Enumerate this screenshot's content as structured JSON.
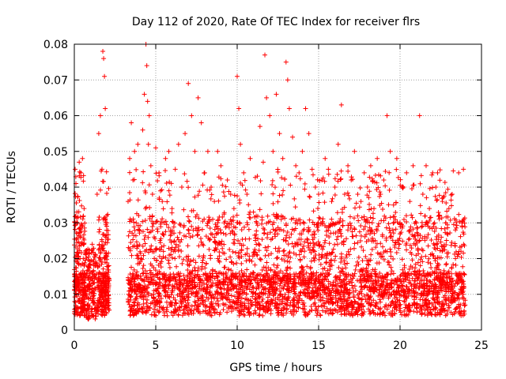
{
  "chart_data": {
    "type": "scatter",
    "title": "Day 112 of 2020, Rate Of TEC Index for receiver flrs",
    "xlabel": "GPS time / hours",
    "ylabel": "ROTI / TECUs",
    "xlim": [
      0,
      25
    ],
    "ylim": [
      0,
      0.08
    ],
    "xticks": [
      0,
      5,
      10,
      15,
      20,
      25
    ],
    "yticks": [
      0,
      0.01,
      0.02,
      0.03,
      0.04,
      0.05,
      0.06,
      0.07,
      0.08
    ],
    "xtick_labels": [
      "0",
      "5",
      "10",
      "15",
      "20",
      "25"
    ],
    "ytick_labels": [
      "0",
      "0.01",
      "0.02",
      "0.03",
      "0.04",
      "0.05",
      "0.06",
      "0.07",
      "0.08"
    ],
    "grid": true,
    "marker": "+",
    "marker_color": "#ff0000",
    "data_gap_hours": [
      2.2,
      3.2
    ],
    "series": [
      {
        "x": [
          0.05,
          0.1,
          0.15,
          0.2,
          0.25,
          0.3,
          0.35,
          0.4,
          0.45,
          0.5,
          0.55,
          0.6,
          0.7,
          0.8,
          0.9,
          1.0,
          1.1,
          1.2,
          1.3,
          1.4,
          1.5,
          1.6,
          1.7,
          1.75,
          1.8,
          1.85,
          1.9,
          2.0,
          2.1,
          3.3,
          3.4,
          3.5,
          3.6,
          3.7,
          3.8,
          3.9,
          4.0,
          4.1,
          4.2,
          4.3,
          4.4,
          4.45,
          4.5,
          4.55,
          4.6,
          4.7,
          4.8,
          4.9,
          5.0,
          5.2,
          5.4,
          5.6,
          5.8,
          6.0,
          6.2,
          6.4,
          6.6,
          6.8,
          7.0,
          7.2,
          7.4,
          7.6,
          7.8,
          8.0,
          8.2,
          8.4,
          8.6,
          8.8,
          9.0,
          9.2,
          9.4,
          9.6,
          9.8,
          10.0,
          10.1,
          10.2,
          10.4,
          10.6,
          10.8,
          11.0,
          11.2,
          11.4,
          11.6,
          11.7,
          11.8,
          12.0,
          12.2,
          12.4,
          12.6,
          12.8,
          13.0,
          13.1,
          13.2,
          13.4,
          13.6,
          13.8,
          14.0,
          14.2,
          14.4,
          14.6,
          14.8,
          15.0,
          15.2,
          15.4,
          15.6,
          15.8,
          16.0,
          16.2,
          16.4,
          16.6,
          16.8,
          17.0,
          17.2,
          17.4,
          17.6,
          17.8,
          18.0,
          18.2,
          18.4,
          18.6,
          18.8,
          19.0,
          19.2,
          19.4,
          19.6,
          19.8,
          20.0,
          20.2,
          20.4,
          20.6,
          20.8,
          21.0,
          21.2,
          21.4,
          21.6,
          21.8,
          22.0,
          22.2,
          22.4,
          22.6,
          22.8,
          23.0,
          23.2,
          23.4,
          23.6,
          23.8,
          23.9
        ],
        "y": [
          0.045,
          0.041,
          0.012,
          0.03,
          0.008,
          0.047,
          0.02,
          0.044,
          0.006,
          0.048,
          0.015,
          0.034,
          0.01,
          0.007,
          0.014,
          0.009,
          0.024,
          0.011,
          0.006,
          0.038,
          0.055,
          0.06,
          0.045,
          0.078,
          0.076,
          0.071,
          0.062,
          0.03,
          0.012,
          0.036,
          0.048,
          0.058,
          0.042,
          0.05,
          0.03,
          0.052,
          0.028,
          0.02,
          0.056,
          0.066,
          0.08,
          0.074,
          0.064,
          0.052,
          0.06,
          0.046,
          0.038,
          0.015,
          0.051,
          0.044,
          0.036,
          0.048,
          0.05,
          0.034,
          0.045,
          0.052,
          0.04,
          0.055,
          0.069,
          0.06,
          0.05,
          0.065,
          0.058,
          0.044,
          0.05,
          0.04,
          0.036,
          0.05,
          0.046,
          0.03,
          0.042,
          0.038,
          0.034,
          0.071,
          0.062,
          0.052,
          0.044,
          0.038,
          0.048,
          0.033,
          0.03,
          0.057,
          0.047,
          0.077,
          0.065,
          0.06,
          0.05,
          0.066,
          0.055,
          0.048,
          0.075,
          0.07,
          0.062,
          0.054,
          0.046,
          0.044,
          0.05,
          0.062,
          0.055,
          0.045,
          0.04,
          0.038,
          0.042,
          0.048,
          0.045,
          0.036,
          0.04,
          0.052,
          0.063,
          0.038,
          0.046,
          0.042,
          0.05,
          0.038,
          0.036,
          0.044,
          0.04,
          0.046,
          0.034,
          0.048,
          0.038,
          0.042,
          0.06,
          0.05,
          0.035,
          0.048,
          0.03,
          0.04,
          0.044,
          0.036,
          0.046,
          0.03,
          0.06,
          0.038,
          0.046,
          0.034,
          0.044,
          0.04,
          0.032,
          0.036,
          0.03,
          0.034,
          0.038,
          0.028,
          0.044,
          0.03,
          0.024
        ]
      }
    ]
  }
}
